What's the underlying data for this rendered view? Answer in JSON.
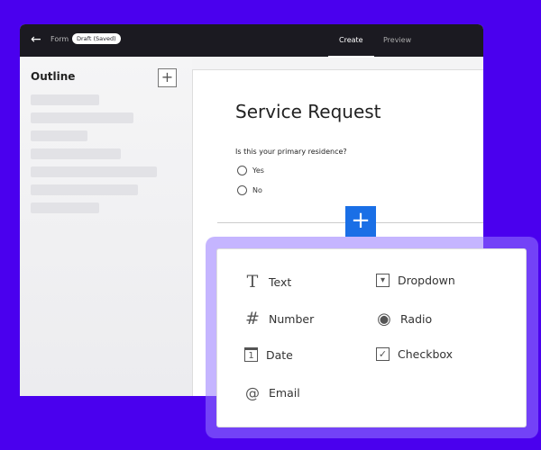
{
  "header": {
    "back_icon": "arrow-left-icon",
    "form_label": "Form",
    "status_badge": "Draft (Saved)",
    "tabs": [
      {
        "label": "Create",
        "active": true
      },
      {
        "label": "Preview",
        "active": false
      }
    ]
  },
  "sidebar": {
    "title": "Outline",
    "add_label": "+"
  },
  "form": {
    "title": "Service Request",
    "question": "Is this your primary residence?",
    "options": [
      "Yes",
      "No"
    ],
    "add_label": "+"
  },
  "menu": {
    "items": [
      {
        "label": "Text",
        "icon": "text-icon",
        "glyph": "T"
      },
      {
        "label": "Number",
        "icon": "hash-icon",
        "glyph": "#"
      },
      {
        "label": "Date",
        "icon": "calendar-icon",
        "glyph": "1"
      },
      {
        "label": "Email",
        "icon": "at-icon",
        "glyph": "@"
      },
      {
        "label": "Dropdown",
        "icon": "dropdown-icon",
        "glyph": "▾"
      },
      {
        "label": "Radio",
        "icon": "radio-icon",
        "glyph": "◉"
      },
      {
        "label": "Checkbox",
        "icon": "checkbox-icon",
        "glyph": "✓"
      }
    ]
  },
  "colors": {
    "background": "#4a00ee",
    "accent": "#1a6fe6",
    "header": "#1b1a21"
  }
}
